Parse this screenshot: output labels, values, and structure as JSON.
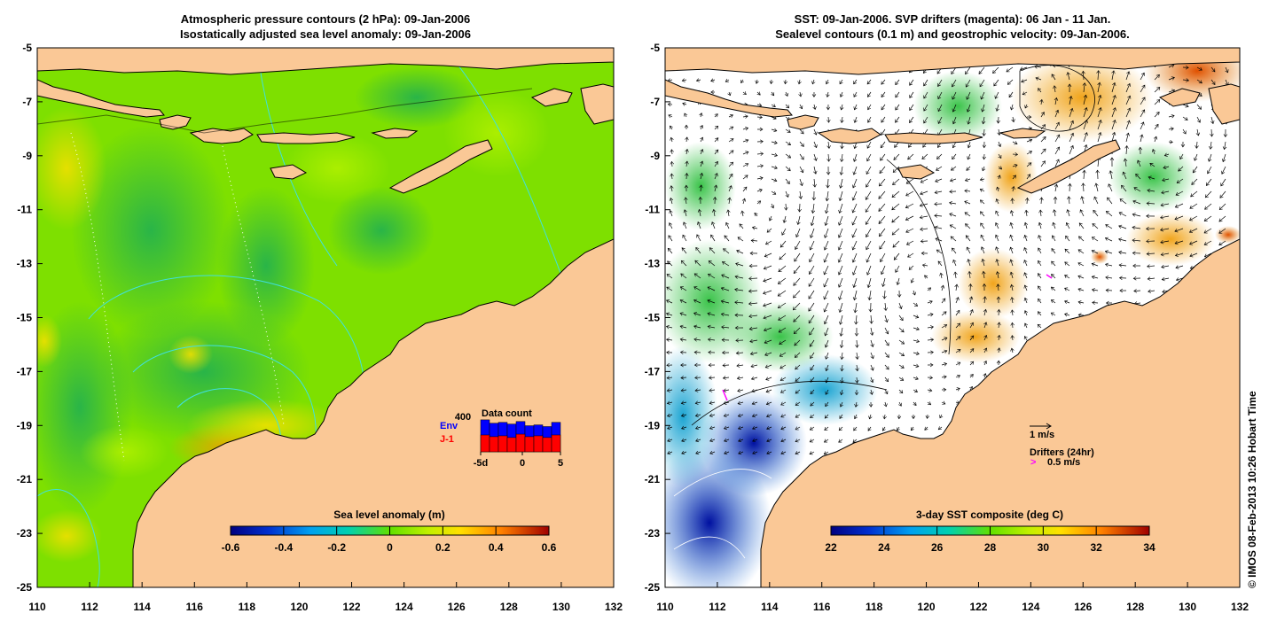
{
  "left_panel": {
    "title_line1": "Atmospheric pressure contours (2 hPa): 09-Jan-2006",
    "title_line2": "Isostatically adjusted sea level anomaly: 09-Jan-2006",
    "colorbar": {
      "title": "Sea level anomaly (m)",
      "ticks": [
        "-0.6",
        "-0.4",
        "-0.2",
        "0",
        "0.2",
        "0.4",
        "0.6"
      ],
      "min": -0.6,
      "max": 0.6
    },
    "data_count": {
      "title": "Data count",
      "max_label": "400",
      "series1_label": "Env",
      "series2_label": "J-1",
      "series1_color": "#0000ff",
      "series2_color": "#ff0000",
      "x_ticks": [
        "-5d",
        "0",
        "5"
      ],
      "env_values": [
        380,
        340,
        350,
        330,
        360,
        310,
        320,
        300,
        350
      ],
      "j1_values": [
        200,
        180,
        190,
        170,
        210,
        180,
        190,
        170,
        200
      ],
      "ymax": 400
    }
  },
  "right_panel": {
    "title_line1": "SST: 09-Jan-2006. SVP drifters (magenta): 06 Jan - 11 Jan.",
    "title_line2": "Sealevel contours (0.1 m) and geostrophic velocity: 09-Jan-2006.",
    "colorbar": {
      "title": "3-day SST composite (deg C)",
      "ticks": [
        "22",
        "24",
        "26",
        "28",
        "30",
        "32",
        "34"
      ],
      "min": 22,
      "max": 34
    },
    "velocity_legend": "1 m/s",
    "drifters_legend": "Drifters (24hr)",
    "drifters_speed": "0.5 m/s",
    "drifters_marker": ">"
  },
  "axes": {
    "lon_ticks": [
      "110",
      "112",
      "114",
      "116",
      "118",
      "120",
      "122",
      "124",
      "126",
      "128",
      "130",
      "132"
    ],
    "lat_ticks": [
      "-5",
      "-7",
      "-9",
      "-11",
      "-13",
      "-15",
      "-17",
      "-19",
      "-21",
      "-23",
      "-25"
    ],
    "lon_range": [
      110,
      132
    ],
    "lat_range": [
      -25,
      -5
    ]
  },
  "credit": "© IMOS 08-Feb-2013 10:26 Hobart Time",
  "colors": {
    "land": "#fac896",
    "sla_background": "#7ee000",
    "sst_missing": "#ffffff",
    "contour_cyan": "#40e0e0"
  }
}
